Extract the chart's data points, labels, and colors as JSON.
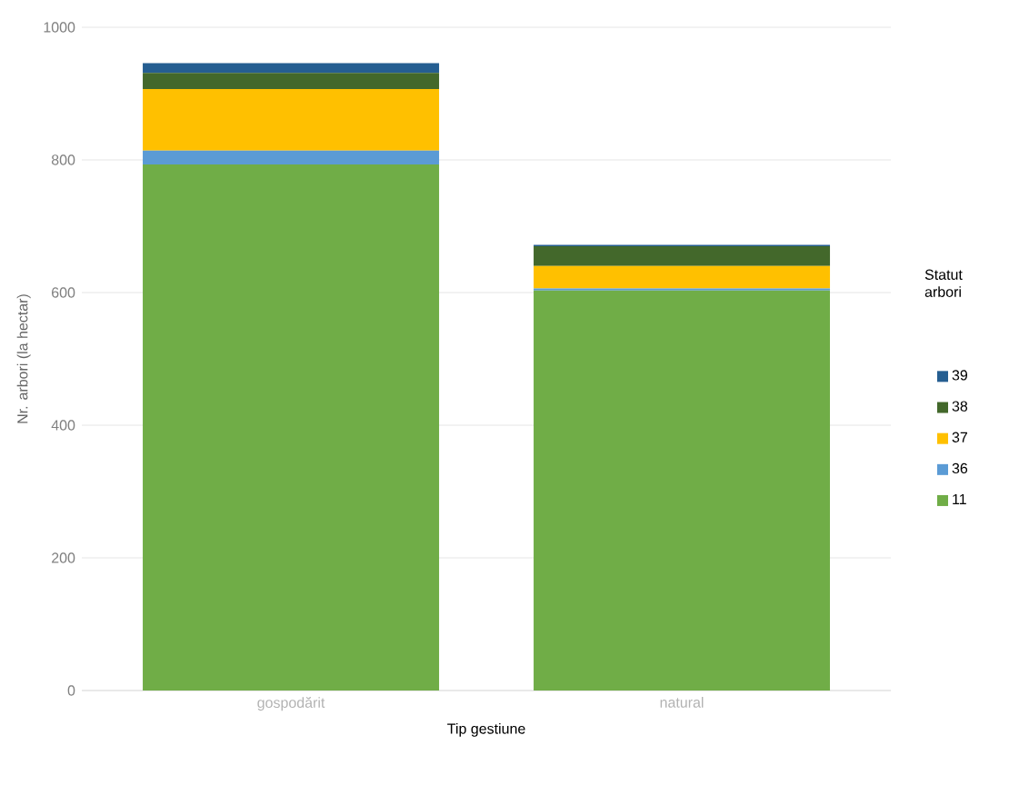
{
  "chart_data": {
    "type": "bar",
    "stacked": true,
    "xlabel": "Tip gestiune",
    "ylabel": "Nr. arbori (la hectar)",
    "legend_title": "Statut arbori",
    "categories": [
      "gospodărit",
      "natural"
    ],
    "series": [
      {
        "name": "11",
        "color": "#70ad47",
        "values": [
          793,
          603
        ]
      },
      {
        "name": "36",
        "color": "#5b9bd5",
        "values": [
          21,
          3
        ]
      },
      {
        "name": "37",
        "color": "#ffc000",
        "values": [
          93,
          34
        ]
      },
      {
        "name": "38",
        "color": "#43682b",
        "values": [
          24,
          30
        ]
      },
      {
        "name": "39",
        "color": "#255e91",
        "values": [
          15,
          2
        ]
      }
    ],
    "ylim": [
      0,
      1000
    ],
    "yticks": [
      0,
      200,
      400,
      600,
      800,
      1000
    ],
    "grid": "y",
    "legend": "right"
  }
}
